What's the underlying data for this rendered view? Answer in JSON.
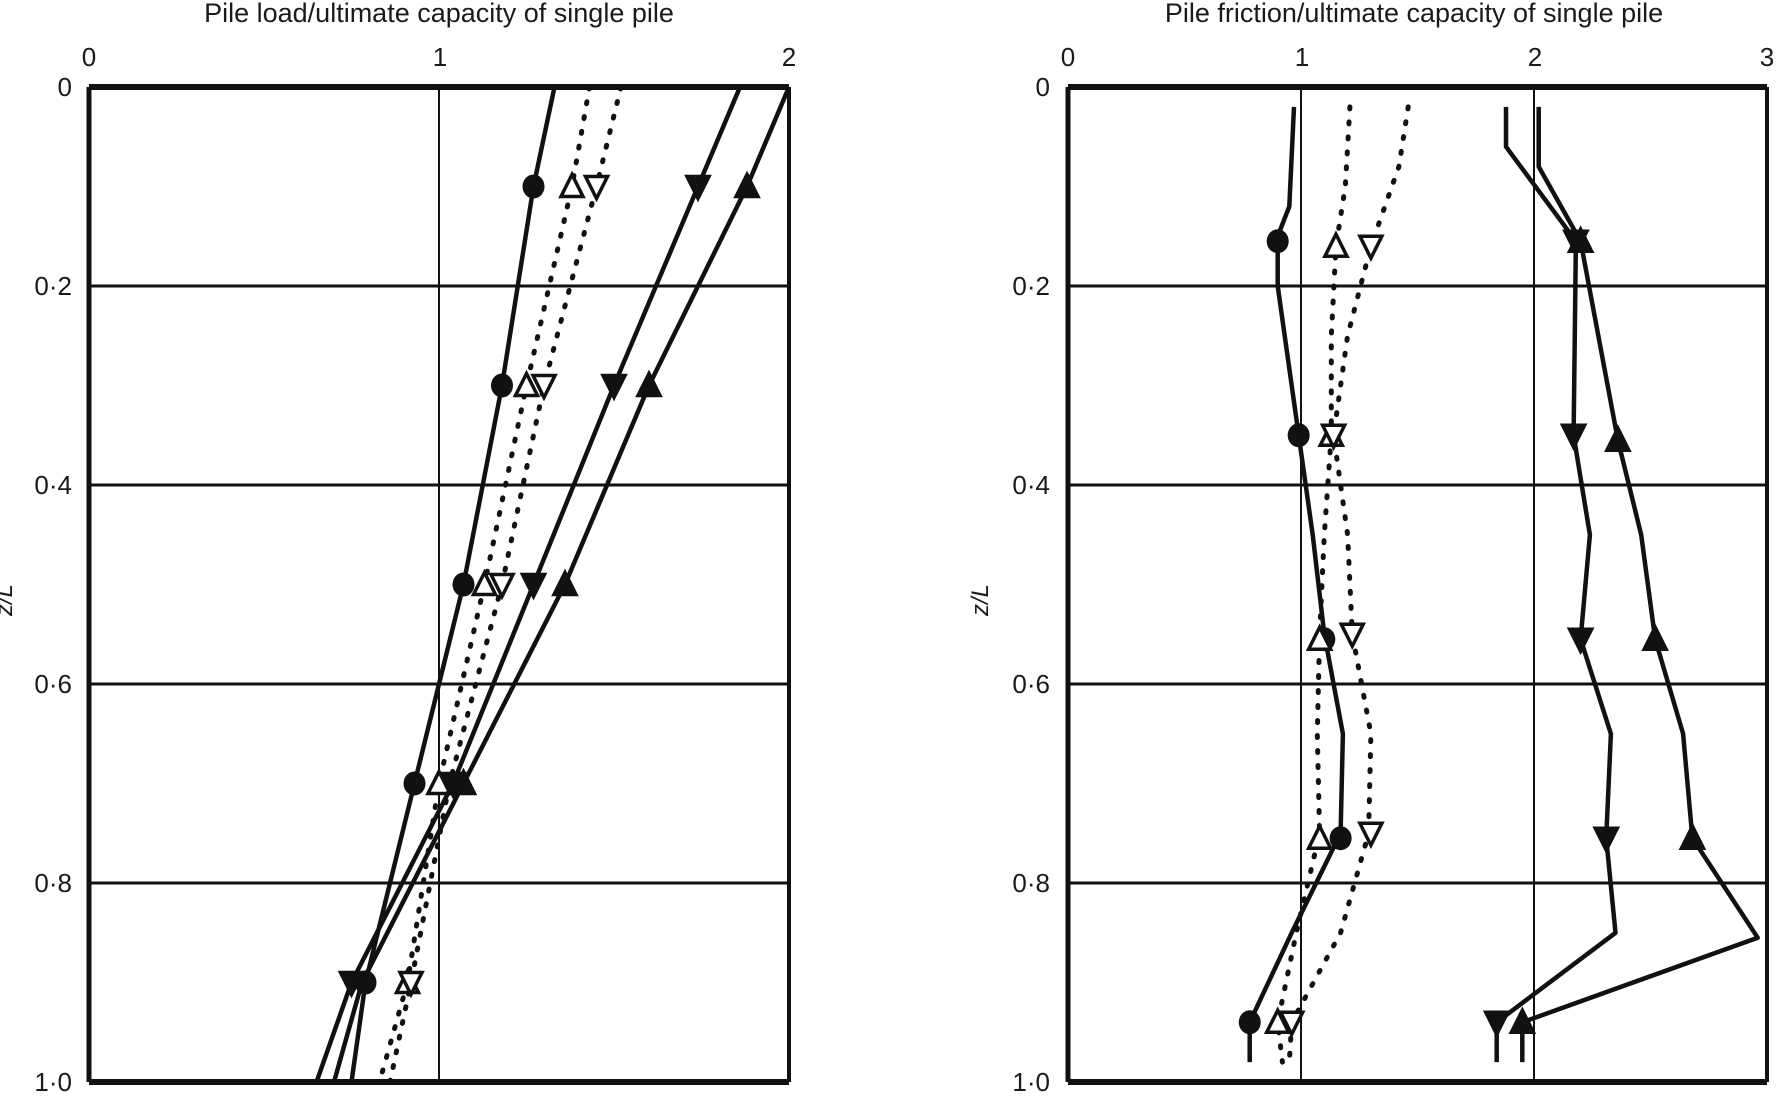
{
  "chart_data": [
    {
      "type": "line",
      "title": "Pile load/ultimate capacity of single pile",
      "xlabel": "Pile load/ultimate capacity of single pile",
      "ylabel": "z/L",
      "xlim": [
        0,
        2
      ],
      "ylim": [
        0,
        1.0
      ],
      "y_inverted": true,
      "x_ticks": [
        "0",
        "1",
        "2"
      ],
      "y_ticks": [
        "0",
        "0·2",
        "0·4",
        "0·6",
        "0·8",
        "1·0"
      ],
      "grid": true,
      "legend": "none",
      "series": [
        {
          "name": "filled-circle",
          "marker": "circle-filled",
          "style": "solid",
          "points": [
            [
              1.33,
              0
            ],
            [
              1.27,
              0.1
            ],
            [
              1.18,
              0.3
            ],
            [
              1.07,
              0.5
            ],
            [
              0.93,
              0.7
            ],
            [
              0.79,
              0.9
            ],
            [
              0.75,
              1.0
            ]
          ],
          "markers_at": [
            [
              1.27,
              0.1
            ],
            [
              1.18,
              0.3
            ],
            [
              1.07,
              0.5
            ],
            [
              0.93,
              0.7
            ],
            [
              0.79,
              0.9
            ]
          ]
        },
        {
          "name": "open-triangle-up",
          "marker": "triangle-up-open",
          "style": "dotted",
          "points": [
            [
              1.43,
              0
            ],
            [
              1.38,
              0.1
            ],
            [
              1.25,
              0.3
            ],
            [
              1.13,
              0.5
            ],
            [
              1.0,
              0.7
            ],
            [
              0.91,
              0.9
            ],
            [
              0.83,
              1.0
            ]
          ],
          "markers_at": [
            [
              1.38,
              0.1
            ],
            [
              1.25,
              0.3
            ],
            [
              1.13,
              0.5
            ],
            [
              1.0,
              0.7
            ],
            [
              0.91,
              0.9
            ]
          ]
        },
        {
          "name": "open-triangle-down",
          "marker": "triangle-down-open",
          "style": "dotted",
          "points": [
            [
              1.52,
              0
            ],
            [
              1.45,
              0.1
            ],
            [
              1.3,
              0.3
            ],
            [
              1.18,
              0.5
            ],
            [
              1.03,
              0.7
            ],
            [
              0.92,
              0.9
            ],
            [
              0.86,
              1.0
            ]
          ],
          "markers_at": [
            [
              1.45,
              0.1
            ],
            [
              1.3,
              0.3
            ],
            [
              1.18,
              0.5
            ],
            [
              0.92,
              0.9
            ]
          ]
        },
        {
          "name": "filled-triangle-down",
          "marker": "triangle-down-filled",
          "style": "solid",
          "points": [
            [
              1.86,
              0
            ],
            [
              1.74,
              0.1
            ],
            [
              1.5,
              0.3
            ],
            [
              1.27,
              0.5
            ],
            [
              1.04,
              0.7
            ],
            [
              0.75,
              0.9
            ],
            [
              0.65,
              1.0
            ]
          ],
          "markers_at": [
            [
              1.74,
              0.1
            ],
            [
              1.5,
              0.3
            ],
            [
              1.27,
              0.5
            ],
            [
              1.04,
              0.7
            ],
            [
              0.75,
              0.9
            ]
          ]
        },
        {
          "name": "filled-triangle-up",
          "marker": "triangle-up-filled",
          "style": "solid",
          "points": [
            [
              2.0,
              0
            ],
            [
              1.88,
              0.1
            ],
            [
              1.6,
              0.3
            ],
            [
              1.36,
              0.5
            ],
            [
              1.07,
              0.7
            ],
            [
              0.78,
              0.9
            ],
            [
              0.7,
              1.0
            ]
          ],
          "markers_at": [
            [
              1.88,
              0.1
            ],
            [
              1.6,
              0.3
            ],
            [
              1.36,
              0.5
            ],
            [
              1.07,
              0.7
            ]
          ]
        }
      ]
    },
    {
      "type": "line",
      "title": "Pile friction/ultimate capacity of single pile",
      "xlabel": "Pile friction/ultimate capacity of single pile",
      "ylabel": "z/L",
      "xlim": [
        0,
        3
      ],
      "ylim": [
        0,
        1.0
      ],
      "y_inverted": true,
      "x_ticks": [
        "0",
        "1",
        "2",
        "3"
      ],
      "y_ticks": [
        "0",
        "0·2",
        "0·4",
        "0·6",
        "0·8",
        "1·0"
      ],
      "grid": true,
      "legend": "none",
      "series": [
        {
          "name": "filled-circle",
          "marker": "circle-filled",
          "style": "solid",
          "points": [
            [
              0.97,
              0.02
            ],
            [
              0.95,
              0.12
            ],
            [
              0.9,
              0.15
            ],
            [
              0.9,
              0.2
            ],
            [
              0.99,
              0.35
            ],
            [
              1.05,
              0.45
            ],
            [
              1.1,
              0.55
            ],
            [
              1.18,
              0.65
            ],
            [
              1.17,
              0.75
            ],
            [
              0.96,
              0.85
            ],
            [
              0.78,
              0.94
            ],
            [
              0.78,
              0.98
            ]
          ],
          "markers_at": [
            [
              0.9,
              0.155
            ],
            [
              0.99,
              0.35
            ],
            [
              1.1,
              0.555
            ],
            [
              1.17,
              0.755
            ],
            [
              0.78,
              0.94
            ]
          ]
        },
        {
          "name": "open-triangle-up",
          "marker": "triangle-up-open",
          "style": "dotted",
          "points": [
            [
              1.21,
              0.02
            ],
            [
              1.19,
              0.1
            ],
            [
              1.15,
              0.16
            ],
            [
              1.13,
              0.25
            ],
            [
              1.13,
              0.35
            ],
            [
              1.1,
              0.45
            ],
            [
              1.08,
              0.55
            ],
            [
              1.07,
              0.65
            ],
            [
              1.08,
              0.75
            ],
            [
              0.98,
              0.85
            ],
            [
              0.9,
              0.94
            ],
            [
              0.92,
              0.98
            ]
          ],
          "markers_at": [
            [
              1.15,
              0.16
            ],
            [
              1.13,
              0.35
            ],
            [
              1.08,
              0.555
            ],
            [
              1.08,
              0.755
            ],
            [
              0.9,
              0.94
            ]
          ]
        },
        {
          "name": "open-triangle-down",
          "marker": "triangle-down-open",
          "style": "dotted",
          "points": [
            [
              1.46,
              0.02
            ],
            [
              1.42,
              0.08
            ],
            [
              1.3,
              0.16
            ],
            [
              1.2,
              0.25
            ],
            [
              1.14,
              0.35
            ],
            [
              1.2,
              0.45
            ],
            [
              1.22,
              0.55
            ],
            [
              1.3,
              0.65
            ],
            [
              1.29,
              0.75
            ],
            [
              1.17,
              0.85
            ],
            [
              0.96,
              0.94
            ],
            [
              0.95,
              0.98
            ]
          ],
          "markers_at": [
            [
              1.3,
              0.16
            ],
            [
              1.14,
              0.35
            ],
            [
              1.22,
              0.55
            ],
            [
              1.3,
              0.75
            ],
            [
              0.96,
              0.94
            ]
          ]
        },
        {
          "name": "filled-triangle-down",
          "marker": "triangle-down-filled",
          "style": "solid",
          "points": [
            [
              1.88,
              0.02
            ],
            [
              1.88,
              0.06
            ],
            [
              2.18,
              0.155
            ],
            [
              2.17,
              0.35
            ],
            [
              2.24,
              0.45
            ],
            [
              2.2,
              0.555
            ],
            [
              2.33,
              0.65
            ],
            [
              2.31,
              0.755
            ],
            [
              2.35,
              0.85
            ],
            [
              1.84,
              0.94
            ],
            [
              1.84,
              0.98
            ]
          ],
          "markers_at": [
            [
              2.18,
              0.155
            ],
            [
              2.17,
              0.35
            ],
            [
              2.2,
              0.555
            ],
            [
              2.31,
              0.755
            ],
            [
              1.84,
              0.94
            ]
          ]
        },
        {
          "name": "filled-triangle-up",
          "marker": "triangle-up-filled",
          "style": "solid",
          "points": [
            [
              2.02,
              0.02
            ],
            [
              2.02,
              0.08
            ],
            [
              2.2,
              0.155
            ],
            [
              2.36,
              0.355
            ],
            [
              2.46,
              0.45
            ],
            [
              2.52,
              0.555
            ],
            [
              2.64,
              0.65
            ],
            [
              2.68,
              0.755
            ],
            [
              2.96,
              0.855
            ],
            [
              1.95,
              0.94
            ],
            [
              1.95,
              0.98
            ]
          ],
          "markers_at": [
            [
              2.2,
              0.155
            ],
            [
              2.36,
              0.355
            ],
            [
              2.52,
              0.555
            ],
            [
              2.68,
              0.755
            ],
            [
              1.95,
              0.94
            ]
          ]
        }
      ]
    }
  ],
  "left": {
    "title": "Pile load/ultimate capacity of single pile",
    "ylabel": "z/L",
    "x_ticks": [
      "0",
      "1",
      "2"
    ],
    "y_ticks": [
      "0",
      "0·2",
      "0·4",
      "0·6",
      "0·8",
      "1·0"
    ]
  },
  "right": {
    "title": "Pile friction/ultimate capacity of single pile",
    "ylabel": "z/L",
    "x_ticks": [
      "0",
      "1",
      "2",
      "3"
    ],
    "y_ticks": [
      "0",
      "0·2",
      "0·4",
      "0·6",
      "0·8",
      "1·0"
    ]
  },
  "colors": {
    "ink": "#111111",
    "background": "#ffffff"
  }
}
